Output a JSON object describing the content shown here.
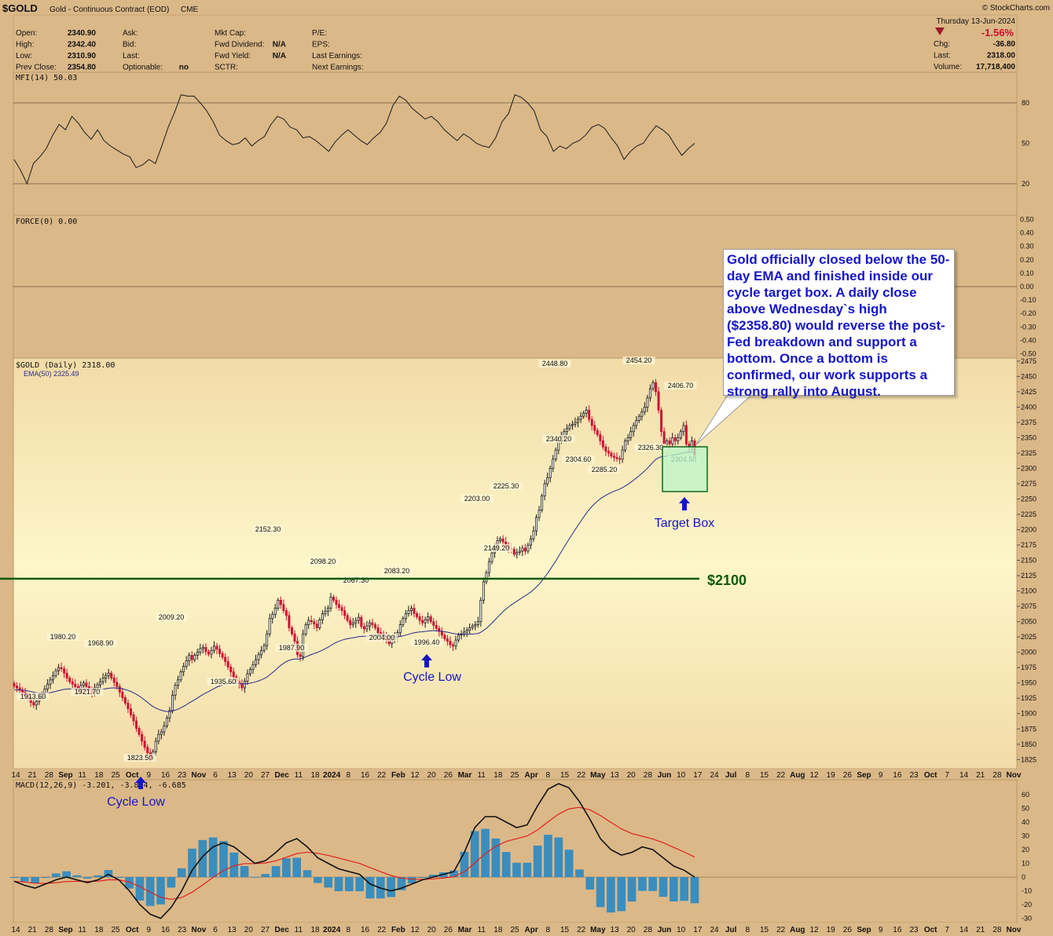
{
  "header": {
    "symbol": "$GOLD",
    "name": "Gold - Continuous Contract (EOD)",
    "exchange": "CME",
    "brand": "© StockCharts.com",
    "date": "Thursday  13-Jun-2024",
    "pct": "-1.56%",
    "quote_left": [
      {
        "label": "Open:",
        "value": "2340.90"
      },
      {
        "label": "High:",
        "value": "2342.40"
      },
      {
        "label": "Low:",
        "value": "2310.90"
      },
      {
        "label": "Prev Close:",
        "value": "2354.80"
      }
    ],
    "quote_mid": [
      {
        "label": "Ask:",
        "value": ""
      },
      {
        "label": "Bid:",
        "value": ""
      },
      {
        "label": "Last:",
        "value": ""
      },
      {
        "label": "Optionable:",
        "value": "no"
      }
    ],
    "quote_mid2": [
      {
        "label": "Mkt Cap:",
        "value": ""
      },
      {
        "label": "Fwd Dividend:",
        "value": "N/A"
      },
      {
        "label": "Fwd Yield:",
        "value": "N/A"
      },
      {
        "label": "SCTR:",
        "value": ""
      }
    ],
    "quote_mid3": [
      {
        "label": "P/E:",
        "value": ""
      },
      {
        "label": "EPS:",
        "value": ""
      },
      {
        "label": "Last Earnings:",
        "value": ""
      },
      {
        "label": "Next Earnings:",
        "value": ""
      }
    ],
    "quote_right": [
      {
        "label": "Chg:",
        "value": "-36.80"
      },
      {
        "label": "Last:",
        "value": "2318.00"
      },
      {
        "label": "Volume:",
        "value": "17,718,400"
      }
    ]
  },
  "panels": {
    "mfi_label": "MFI(14) 50.03",
    "force_label": "FORCE(0) 0.00",
    "price_label": "$GOLD (Daily) 2318.00",
    "ema_label": "EMA(50) 2325.49",
    "macd_label": "MACD(12,26,9) -3.201, -3.884, -6.685"
  },
  "annotations": {
    "note": "Gold officially closed below the 50-day EMA and finished inside our cycle target box. A daily close above Wednesday`s high ($2358.80) would reverse the post-Fed breakdown and support a bottom. Once a bottom is confirmed, our work supports a strong rally into August.",
    "level": "$2100",
    "target_box": "Target Box",
    "cycle_low_1": "Cycle Low",
    "cycle_low_2": "Cycle Low"
  },
  "colors": {
    "background": "#dbb888",
    "price_panel_light": "#fdf6c9",
    "up_candle": "#1a1a1a",
    "down_candle": "#cc1133",
    "ema": "#2a2a8a",
    "level_line": "#0d5a0d",
    "note_text": "#1515c8",
    "target_box": "#b9f5c8",
    "macd_hist": "#3a8dbd",
    "macd_signal": "#e02020"
  },
  "chart_data": {
    "type": "candlestick",
    "ylim": [
      1810,
      2480
    ],
    "yticks": [
      1825,
      1850,
      1875,
      1900,
      1925,
      1950,
      1975,
      2000,
      2025,
      2050,
      2075,
      2100,
      2125,
      2150,
      2175,
      2200,
      2225,
      2250,
      2275,
      2300,
      2325,
      2350,
      2375,
      2400,
      2425,
      2450,
      2475
    ],
    "x_axis_labels": [
      "14",
      "21",
      "28",
      "Sep",
      "11",
      "18",
      "25",
      "Oct",
      "9",
      "16",
      "23",
      "Nov",
      "6",
      "13",
      "20",
      "27",
      "Dec",
      "11",
      "18",
      "2024",
      "8",
      "16",
      "22",
      "Feb",
      "12",
      "20",
      "26",
      "Mar",
      "11",
      "18",
      "25",
      "Apr",
      "8",
      "15",
      "22",
      "May",
      "13",
      "20",
      "28",
      "Jun",
      "10",
      "17",
      "24",
      "Jul",
      "8",
      "15",
      "22",
      "Aug",
      "12",
      "19",
      "26",
      "Sep",
      "9",
      "16",
      "23",
      "Oct",
      "7",
      "14",
      "21",
      "28",
      "Nov"
    ],
    "closes": [
      1945,
      1942,
      1938,
      1935,
      1930,
      1925,
      1918,
      1914,
      1920,
      1926,
      1932,
      1940,
      1948,
      1955,
      1962,
      1970,
      1975,
      1973,
      1966,
      1958,
      1952,
      1948,
      1944,
      1940,
      1946,
      1950,
      1944,
      1939,
      1934,
      1942,
      1947,
      1952,
      1958,
      1962,
      1966,
      1958,
      1951,
      1944,
      1935,
      1926,
      1917,
      1908,
      1898,
      1888,
      1876,
      1866,
      1855,
      1845,
      1836,
      1828,
      1838,
      1855,
      1866,
      1870,
      1880,
      1893,
      1905,
      1930,
      1946,
      1955,
      1968,
      1977,
      1986,
      1995,
      1988,
      1995,
      2000,
      2006,
      2008,
      2001,
      1997,
      2003,
      2010,
      2005,
      1998,
      1992,
      1985,
      1976,
      1968,
      1960,
      1953,
      1948,
      1942,
      1953,
      1965,
      1972,
      1980,
      1988,
      1996,
      2003,
      2011,
      2030,
      2055,
      2062,
      2072,
      2085,
      2078,
      2068,
      2060,
      2040,
      2030,
      2018,
      1996,
      1993,
      2030,
      2045,
      2052,
      2050,
      2046,
      2040,
      2053,
      2063,
      2067,
      2072,
      2090,
      2085,
      2078,
      2073,
      2068,
      2060,
      2052,
      2045,
      2048,
      2052,
      2057,
      2042,
      2038,
      2043,
      2048,
      2045,
      2040,
      2032,
      2030,
      2026,
      2020,
      2014,
      2020,
      2025,
      2032,
      2045,
      2055,
      2063,
      2068,
      2072,
      2063,
      2058,
      2052,
      2048,
      2053,
      2058,
      2050,
      2044,
      2039,
      2034,
      2028,
      2022,
      2018,
      2012,
      2010,
      2020,
      2028,
      2030,
      2033,
      2036,
      2040,
      2043,
      2045,
      2050,
      2085,
      2115,
      2130,
      2148,
      2162,
      2172,
      2182,
      2185,
      2180,
      2175,
      2170,
      2168,
      2160,
      2163,
      2165,
      2170,
      2165,
      2175,
      2185,
      2198,
      2220,
      2232,
      2255,
      2275,
      2285,
      2300,
      2315,
      2330,
      2345,
      2352,
      2360,
      2365,
      2370,
      2372,
      2375,
      2380,
      2385,
      2390,
      2395,
      2380,
      2370,
      2362,
      2355,
      2345,
      2335,
      2328,
      2325,
      2320,
      2318,
      2316,
      2315,
      2330,
      2345,
      2350,
      2360,
      2370,
      2378,
      2385,
      2392,
      2400,
      2415,
      2430,
      2440,
      2425,
      2395,
      2360,
      2340,
      2345,
      2340,
      2350,
      2345,
      2350,
      2360,
      2370,
      2340,
      2335,
      2345,
      2318
    ]
  }
}
